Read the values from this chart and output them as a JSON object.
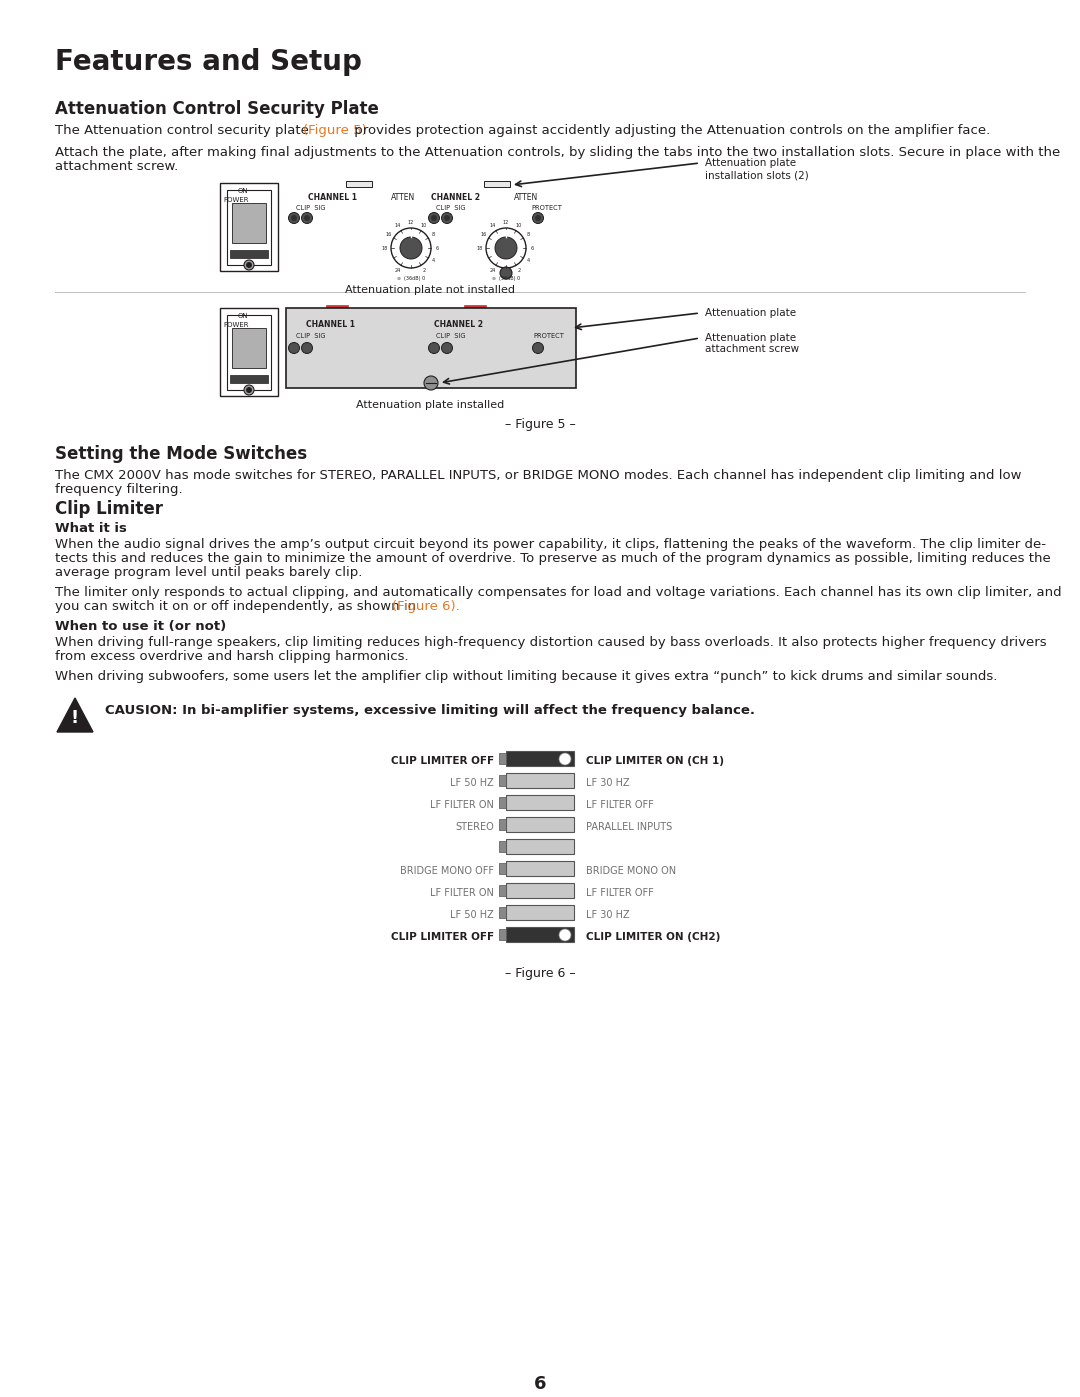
{
  "title": "Features and Setup",
  "bg_color": "#ffffff",
  "text_color": "#231f20",
  "orange_color": "#e87722",
  "gray_color": "#808080",
  "section1_title": "Attenuation Control Security Plate",
  "section2_title": "Setting the Mode Switches",
  "section3_title": "Clip Limiter",
  "section3_sub1": "What it is",
  "section3_sub2": "When to use it (or not)",
  "fig5_caption1": "Attenuation plate not installed",
  "fig5_caption2": "Attenuation plate installed",
  "fig5_label": "– Figure 5 –",
  "fig6_label": "– Figure 6 –",
  "caution_text": "CAUSION: In bi-amplifier systems, excessive limiting will affect the frequency balance.",
  "page_num": "6",
  "p1a": "The Attenuation control security plate ",
  "p1b": "(Figure 5)",
  "p1c": " provides protection against accidently adjusting the Attenuation controls on the amplifier face.",
  "p2": "Attach the plate, after making final adjustments to the Attenuation controls, by sliding the tabs into the two installation slots. Secure in place with the\nattachment screw.",
  "s2p1": "The CMX 2000V has mode switches for STEREO, PARALLEL INPUTS, or BRIDGE MONO modes. Each channel has independent clip limiting and low\nfrequency filtering.",
  "s3p1l1": "When the audio signal drives the amp’s output circuit beyond its power capability, it clips, flattening the peaks of the waveform. The clip limiter de-",
  "s3p1l2": "tects this and reduces the gain to minimize the amount of overdrive. To preserve as much of the program dynamics as possible, limiting reduces the",
  "s3p1l3": "average program level until peaks barely clip.",
  "s3p2l1": "The limiter only responds to actual clipping, and automatically compensates for load and voltage variations. Each channel has its own clip limiter, and",
  "s3p2l2a": "you can switch it on or off independently, as shown in ",
  "s3p2l2b": "(Figure 6).",
  "s3p3l1": "When driving full-range speakers, clip limiting reduces high-frequency distortion caused by bass overloads. It also protects higher frequency drivers",
  "s3p3l2": "from excess overdrive and harsh clipping harmonics.",
  "s3p4": "When driving subwoofers, some users let the amplifier clip without limiting because it gives extra “punch” to kick drums and similar sounds.",
  "switch_rows": [
    {
      "left": "CLIP LIMITER OFF",
      "right": "CLIP LIMITER ON (CH 1)",
      "bold": true,
      "dark": true
    },
    {
      "left": "LF 50 HZ",
      "right": "LF 30 HZ",
      "bold": false,
      "dark": false
    },
    {
      "left": "LF FILTER ON",
      "right": "LF FILTER OFF",
      "bold": false,
      "dark": false
    },
    {
      "left": "STEREO",
      "right": "PARALLEL INPUTS",
      "bold": false,
      "dark": false
    },
    {
      "left": "",
      "right": "",
      "bold": false,
      "dark": false
    },
    {
      "left": "BRIDGE MONO OFF",
      "right": "BRIDGE MONO ON",
      "bold": false,
      "dark": false
    },
    {
      "left": "LF FILTER ON",
      "right": "LF FILTER OFF",
      "bold": false,
      "dark": false
    },
    {
      "left": "LF 50 HZ",
      "right": "LF 30 HZ",
      "bold": false,
      "dark": false
    },
    {
      "left": "CLIP LIMITER OFF",
      "right": "CLIP LIMITER ON (CH2)",
      "bold": true,
      "dark": true
    }
  ]
}
